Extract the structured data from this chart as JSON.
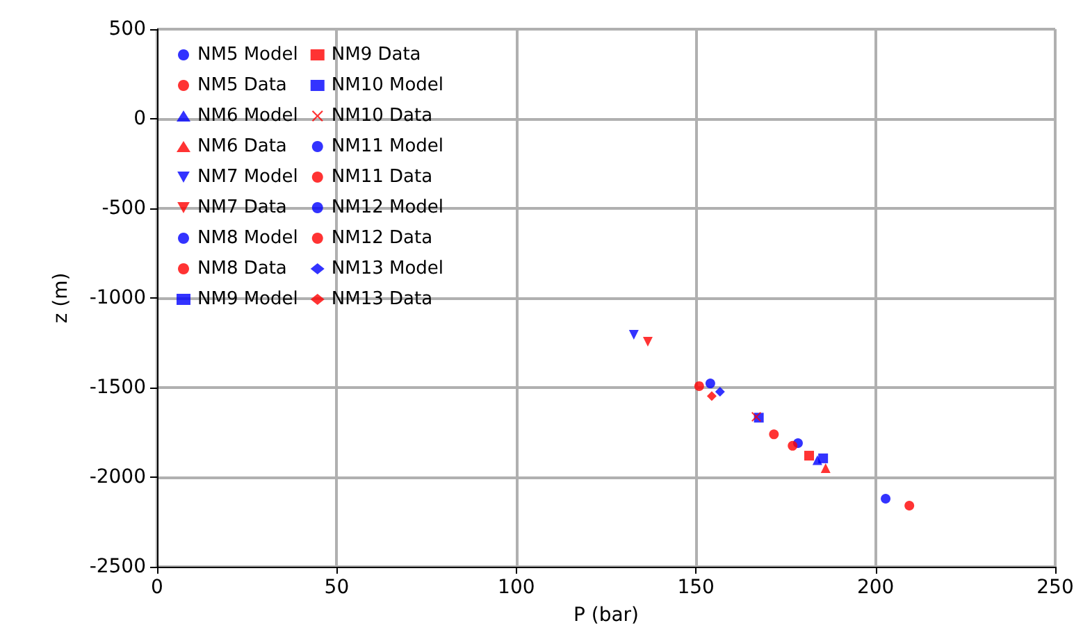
{
  "chart_data": {
    "type": "scatter",
    "xlabel": "P (bar)",
    "ylabel": "z (m)",
    "xlim": [
      0,
      250
    ],
    "xticks": [
      0,
      50,
      100,
      150,
      200,
      250
    ],
    "ylim": [
      -2500,
      500
    ],
    "yticks": [
      -2500,
      -2000,
      -1500,
      -1000,
      -500,
      0,
      500
    ],
    "grid": true,
    "legend": "top left",
    "series": [
      {
        "name": "NM5 Model",
        "color": "#0000ff",
        "marker": "circle",
        "x": [
          null
        ],
        "values": [
          null
        ]
      },
      {
        "name": "NM5 Data",
        "color": "#ff0000",
        "marker": "circle",
        "x": [
          171.7
        ],
        "values": [
          -1761
        ]
      },
      {
        "name": "NM6 Model",
        "color": "#0000ff",
        "marker": "triangle",
        "x": [
          183.8
        ],
        "values": [
          -1905
        ]
      },
      {
        "name": "NM6 Data",
        "color": "#ff0000",
        "marker": "triangle",
        "x": [
          186.1
        ],
        "values": [
          -1950
        ]
      },
      {
        "name": "NM7 Model",
        "color": "#0000ff",
        "marker": "triangle_down",
        "x": [
          132.7
        ],
        "values": [
          -1205
        ]
      },
      {
        "name": "NM7 Data",
        "color": "#ff0000",
        "marker": "triangle_down",
        "x": [
          136.6
        ],
        "values": [
          -1244
        ]
      },
      {
        "name": "NM8 Model",
        "color": "#0000ff",
        "marker": "circle",
        "x": [
          202.8
        ],
        "values": [
          -2120
        ]
      },
      {
        "name": "NM8 Data",
        "color": "#ff0000",
        "marker": "circle",
        "x": [
          209.4
        ],
        "values": [
          -2159
        ]
      },
      {
        "name": "NM9 Model",
        "color": "#0000ff",
        "marker": "square",
        "x": [
          185.4
        ],
        "values": [
          -1895
        ]
      },
      {
        "name": "NM9 Data",
        "color": "#ff0000",
        "marker": "square",
        "x": [
          181.5
        ],
        "values": [
          -1880
        ]
      },
      {
        "name": "NM10 Model",
        "color": "#0000ff",
        "marker": "square",
        "x": [
          167.5
        ],
        "values": [
          -1668
        ]
      },
      {
        "name": "NM10 Data",
        "color": "#ff0000",
        "marker": "cross",
        "x": [
          166.8
        ],
        "values": [
          -1663
        ]
      },
      {
        "name": "NM11 Model",
        "color": "#0000ff",
        "marker": "circle",
        "x": [
          178.4
        ],
        "values": [
          -1810
        ]
      },
      {
        "name": "NM11 Data",
        "color": "#ff0000",
        "marker": "circle",
        "x": [
          176.9
        ],
        "values": [
          -1825
        ]
      },
      {
        "name": "NM12 Model",
        "color": "#0000ff",
        "marker": "circle",
        "x": [
          154
        ],
        "values": [
          -1477
        ]
      },
      {
        "name": "NM12 Data",
        "color": "#ff0000",
        "marker": "circle",
        "x": [
          150.9
        ],
        "values": [
          -1492
        ]
      },
      {
        "name": "NM13 Model",
        "color": "#0000ff",
        "marker": "diamond",
        "x": [
          156.7
        ],
        "values": [
          -1523
        ]
      },
      {
        "name": "NM13 Data",
        "color": "#ff0000",
        "marker": "diamond",
        "x": [
          154.4
        ],
        "values": [
          -1547
        ]
      }
    ]
  }
}
